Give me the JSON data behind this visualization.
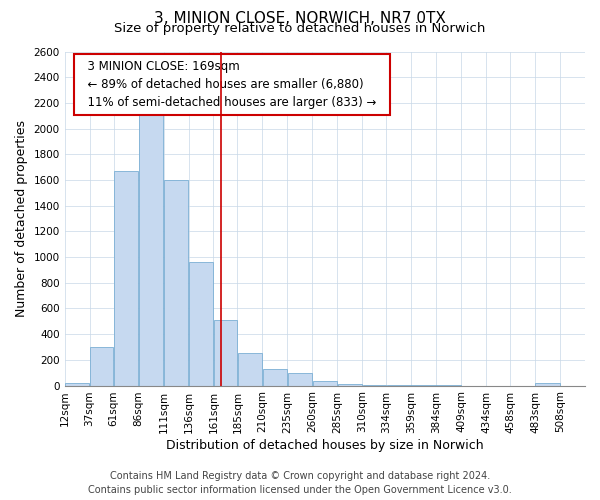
{
  "title": "3, MINION CLOSE, NORWICH, NR7 0TX",
  "subtitle": "Size of property relative to detached houses in Norwich",
  "xlabel": "Distribution of detached houses by size in Norwich",
  "ylabel": "Number of detached properties",
  "bar_left_edges": [
    12,
    37,
    61,
    86,
    111,
    136,
    161,
    185,
    210,
    235,
    260,
    285,
    310,
    334,
    359,
    384,
    409,
    434,
    458,
    483
  ],
  "bar_heights": [
    20,
    300,
    1670,
    2130,
    1600,
    960,
    510,
    255,
    130,
    100,
    35,
    15,
    5,
    3,
    2,
    1,
    0,
    0,
    0,
    20
  ],
  "bar_widths": [
    25,
    24,
    25,
    25,
    25,
    25,
    24,
    25,
    25,
    25,
    25,
    25,
    24,
    25,
    25,
    25,
    25,
    24,
    25,
    25
  ],
  "tick_labels": [
    "12sqm",
    "37sqm",
    "61sqm",
    "86sqm",
    "111sqm",
    "136sqm",
    "161sqm",
    "185sqm",
    "210sqm",
    "235sqm",
    "260sqm",
    "285sqm",
    "310sqm",
    "334sqm",
    "359sqm",
    "384sqm",
    "409sqm",
    "434sqm",
    "458sqm",
    "483sqm",
    "508sqm"
  ],
  "tick_positions": [
    12,
    37,
    61,
    86,
    111,
    136,
    161,
    185,
    210,
    235,
    260,
    285,
    310,
    334,
    359,
    384,
    409,
    434,
    458,
    483,
    508
  ],
  "bar_color": "#c6d9f0",
  "bar_edge_color": "#7bafd4",
  "marker_x": 169,
  "marker_color": "#cc0000",
  "ylim": [
    0,
    2600
  ],
  "xlim": [
    12,
    533
  ],
  "yticks": [
    0,
    200,
    400,
    600,
    800,
    1000,
    1200,
    1400,
    1600,
    1800,
    2000,
    2200,
    2400,
    2600
  ],
  "annotation_title": "3 MINION CLOSE: 169sqm",
  "annotation_line1": "← 89% of detached houses are smaller (6,880)",
  "annotation_line2": "11% of semi-detached houses are larger (833) →",
  "footer1": "Contains HM Land Registry data © Crown copyright and database right 2024.",
  "footer2": "Contains public sector information licensed under the Open Government Licence v3.0.",
  "title_fontsize": 11,
  "subtitle_fontsize": 9.5,
  "axis_label_fontsize": 9,
  "tick_fontsize": 7.5,
  "annotation_fontsize": 8.5,
  "footer_fontsize": 7
}
